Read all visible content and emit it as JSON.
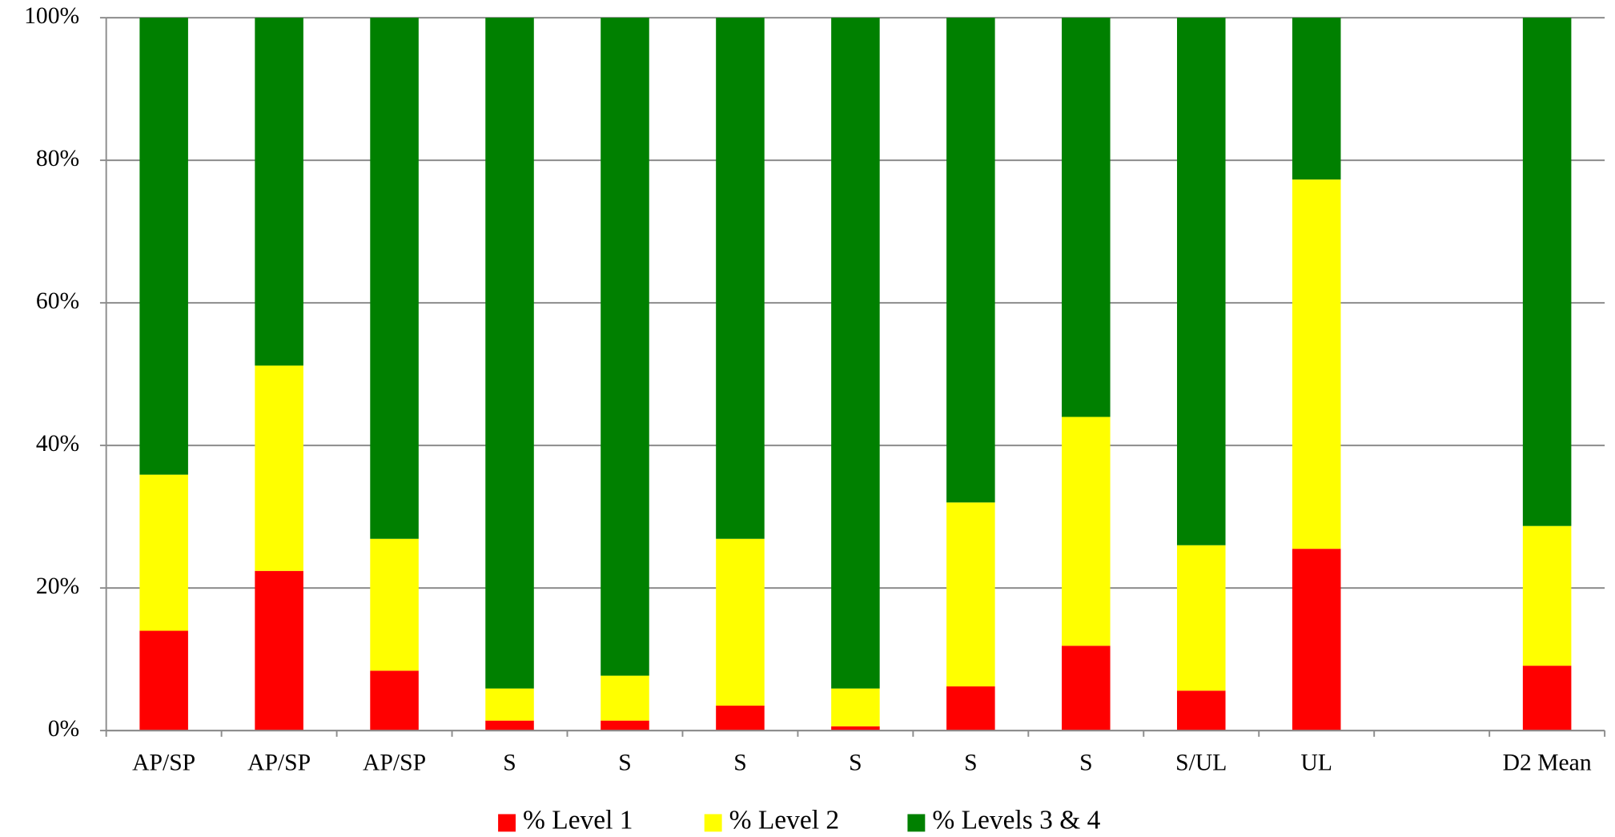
{
  "chart_data": {
    "type": "stacked_bar",
    "categories": [
      "AP/SP",
      "AP/SP",
      "AP/SP",
      "S",
      "S",
      "S",
      "S",
      "S",
      "S",
      "S/UL",
      "UL",
      null,
      "D2 Mean"
    ],
    "series": [
      {
        "name": "% Level 1",
        "color": "#ff0000",
        "values": [
          14.0,
          22.4,
          8.4,
          1.4,
          1.4,
          3.5,
          0.6,
          6.2,
          11.9,
          5.6,
          25.5,
          null,
          9.1
        ]
      },
      {
        "name": "% Level 2",
        "color": "#ffff00",
        "values": [
          21.9,
          28.8,
          18.5,
          4.5,
          6.3,
          23.4,
          5.3,
          25.8,
          32.1,
          20.4,
          51.8,
          null,
          19.6
        ]
      },
      {
        "name": "% Levels 3 & 4",
        "color": "#008000",
        "values": [
          64.1,
          48.8,
          73.1,
          94.1,
          92.3,
          73.1,
          94.1,
          68.0,
          56.0,
          74.0,
          22.7,
          null,
          71.3
        ]
      }
    ],
    "ylim": [
      0,
      100
    ],
    "yticks": [
      {
        "value": 0,
        "label": "0%"
      },
      {
        "value": 20,
        "label": "20%"
      },
      {
        "value": 40,
        "label": "40%"
      },
      {
        "value": 60,
        "label": "60%"
      },
      {
        "value": 80,
        "label": "80%"
      },
      {
        "value": 100,
        "label": "100%"
      }
    ],
    "grid": true,
    "legend": "bottom"
  }
}
